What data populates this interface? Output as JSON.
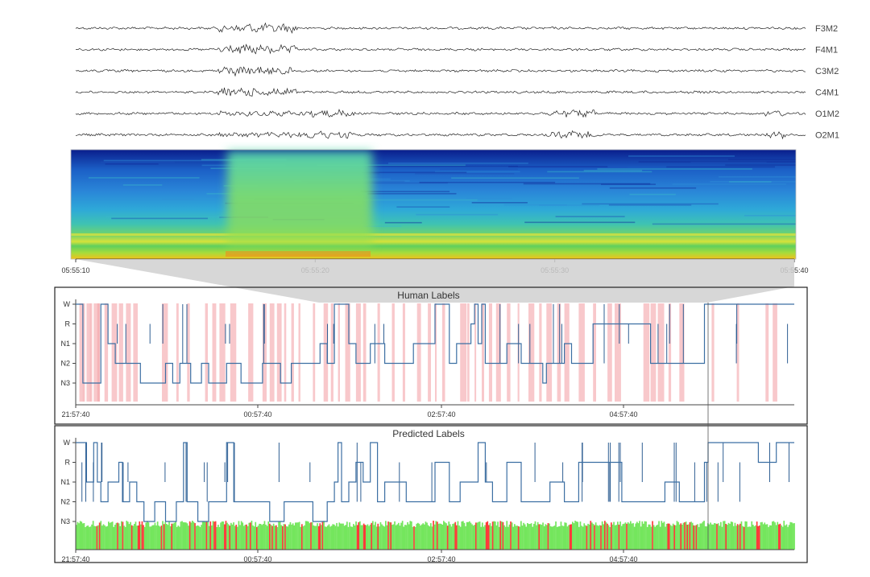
{
  "eeg": {
    "channels": [
      "F3M2",
      "F4M1",
      "C3M2",
      "C4M1",
      "O1M2",
      "O2M1"
    ]
  },
  "spectrogram": {
    "time_ticks": [
      "05:55:10",
      "05:55:20",
      "05:55:30",
      "05:55:40"
    ]
  },
  "hypnogram": {
    "stage_labels": [
      "W",
      "R",
      "N1",
      "N2",
      "N3"
    ],
    "time_ticks": [
      "21:57:40",
      "00:57:40",
      "02:57:40",
      "04:57:40"
    ]
  },
  "chart_data": [
    {
      "type": "line",
      "title": "Human Labels",
      "y_categories": [
        "W",
        "R",
        "N1",
        "N2",
        "N3"
      ],
      "x_ticks": [
        "21:57:40",
        "00:57:40",
        "02:57:40",
        "04:57:40"
      ],
      "series": [
        {
          "x": [
            0,
            0.01,
            0.035,
            0.045,
            0.055,
            0.065,
            0.09,
            0.125,
            0.135,
            0.145,
            0.16,
            0.175,
            0.185,
            0.21,
            0.23,
            0.26,
            0.285,
            0.3,
            0.32,
            0.34,
            0.35,
            0.36,
            0.38,
            0.39,
            0.41,
            0.43,
            0.45,
            0.47,
            0.5,
            0.52,
            0.53,
            0.55,
            0.555,
            0.56,
            0.565,
            0.57,
            0.58,
            0.6,
            0.62,
            0.64,
            0.65,
            0.655,
            0.66,
            0.68,
            0.69,
            0.72,
            0.76,
            0.8,
            0.82,
            0.84,
            0.875,
            0.88,
            1.0
          ],
          "stage": [
            "W",
            "N3",
            "W",
            "N1",
            "N2",
            "N2",
            "N3",
            "N2",
            "N3",
            "N2",
            "N3",
            "N2",
            "N3",
            "N2",
            "N3",
            "N2",
            "N3",
            "N2",
            "N2",
            "N1",
            "N2",
            "W",
            "N1",
            "N2",
            "N1",
            "N2",
            "N2",
            "N1",
            "W",
            "N2",
            "N1",
            "R",
            "W",
            "N1",
            "W",
            "N2",
            "N2",
            "N1",
            "N2",
            "N2",
            "N3",
            "N2",
            "N2",
            "N1",
            "N2",
            "R",
            "R",
            "N2",
            "N2",
            "N2",
            "W",
            "W",
            "W"
          ]
        }
      ],
      "red_bands": [
        0.005,
        0.01,
        0.015,
        0.02,
        0.025,
        0.03,
        0.04,
        0.05,
        0.06,
        0.07,
        0.08,
        0.12,
        0.14,
        0.155,
        0.18,
        0.19,
        0.2,
        0.215,
        0.24,
        0.26,
        0.27,
        0.28,
        0.29,
        0.3,
        0.31,
        0.33,
        0.345,
        0.355,
        0.365,
        0.375,
        0.39,
        0.4,
        0.42,
        0.44,
        0.455,
        0.475,
        0.49,
        0.5,
        0.51,
        0.535,
        0.545,
        0.555,
        0.565,
        0.575,
        0.585,
        0.6,
        0.615,
        0.63,
        0.645,
        0.655,
        0.67,
        0.68,
        0.7,
        0.72,
        0.74,
        0.75,
        0.79,
        0.8,
        0.81,
        0.825,
        0.84,
        0.885,
        0.92,
        0.96,
        0.97
      ]
    },
    {
      "type": "line",
      "title": "Predicted Labels",
      "y_categories": [
        "W",
        "R",
        "N1",
        "N2",
        "N3"
      ],
      "x_ticks": [
        "21:57:40",
        "00:57:40",
        "02:57:40",
        "04:57:40"
      ],
      "series": [
        {
          "x": [
            0,
            0.015,
            0.025,
            0.03,
            0.035,
            0.045,
            0.06,
            0.065,
            0.075,
            0.085,
            0.095,
            0.11,
            0.125,
            0.14,
            0.15,
            0.155,
            0.17,
            0.185,
            0.2,
            0.21,
            0.22,
            0.24,
            0.26,
            0.27,
            0.29,
            0.31,
            0.33,
            0.35,
            0.36,
            0.365,
            0.37,
            0.38,
            0.39,
            0.4,
            0.41,
            0.42,
            0.43,
            0.46,
            0.5,
            0.52,
            0.535,
            0.56,
            0.57,
            0.58,
            0.6,
            0.62,
            0.64,
            0.66,
            0.68,
            0.7,
            0.72,
            0.74,
            0.76,
            0.78,
            0.8,
            0.82,
            0.84,
            0.86,
            0.875,
            0.88,
            0.93,
            0.95,
            0.975,
            1.0
          ],
          "stage": [
            "W",
            "N1",
            "W",
            "N1",
            "N2",
            "N1",
            "R",
            "N2",
            "N1",
            "N2",
            "N3",
            "N2",
            "N3",
            "N2",
            "W",
            "N2",
            "N3",
            "N2",
            "N2",
            "W",
            "N2",
            "N2",
            "N2",
            "N3",
            "N2",
            "N2",
            "N3",
            "N2",
            "N1",
            "W",
            "N2",
            "N1",
            "R",
            "N1",
            "W",
            "N2",
            "N1",
            "N2",
            "R",
            "N2",
            "N1",
            "W",
            "N1",
            "N2",
            "R",
            "N2",
            "N2",
            "N1",
            "N2",
            "R",
            "R",
            "R",
            "N2",
            "N2",
            "N2",
            "N1",
            "N2",
            "N2",
            "R",
            "W",
            "W",
            "R",
            "W",
            "W"
          ]
        }
      ],
      "green_bands": [
        0.06,
        0.08,
        0.1,
        0.13,
        0.15,
        0.18,
        0.2,
        0.22,
        0.25,
        0.27,
        0.3,
        0.32,
        0.35,
        0.38,
        0.4,
        0.43,
        0.46,
        0.49,
        0.52,
        0.55,
        0.58,
        0.61,
        0.64,
        0.67,
        0.7,
        0.73,
        0.76,
        0.8,
        0.84,
        0.88,
        0.92,
        0.96
      ],
      "bar_colors": [
        "#ff1a1a",
        "#66e34d"
      ]
    }
  ]
}
